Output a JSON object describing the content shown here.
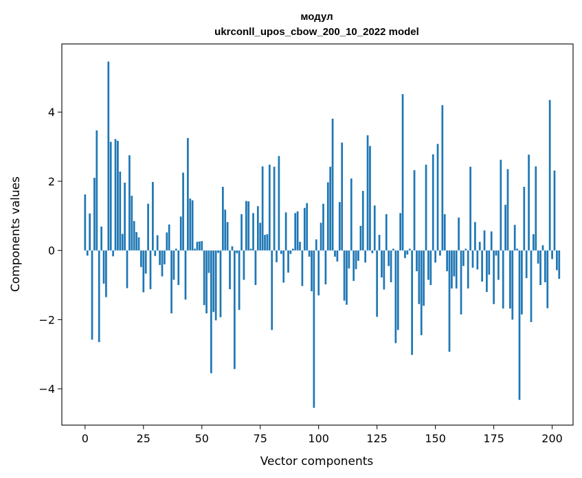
{
  "chart_data": {
    "type": "bar",
    "title": "модул",
    "subtitle": "ukrconll_upos_cbow_200_10_2022 model",
    "xlabel": "Vector components",
    "ylabel": "Components values",
    "xlim": [
      -9.95,
      208.95
    ],
    "ylim": [
      -5.05,
      5.97
    ],
    "xticks": [
      0,
      25,
      50,
      75,
      100,
      125,
      150,
      175,
      200
    ],
    "yticks": [
      -4,
      -2,
      0,
      2,
      4
    ],
    "xtick_labels": [
      "0",
      "25",
      "50",
      "75",
      "100",
      "125",
      "150",
      "175",
      "200"
    ],
    "ytick_labels": [
      "−4",
      "−2",
      "0",
      "2",
      "4"
    ],
    "grid": false,
    "bar_color": "#1f77b4",
    "x_start": 0,
    "values": [
      1.62,
      -0.15,
      1.07,
      -2.58,
      2.1,
      3.47,
      -2.65,
      0.69,
      -0.96,
      -1.35,
      5.46,
      3.14,
      -0.17,
      3.22,
      3.17,
      2.28,
      0.48,
      1.96,
      -1.09,
      2.75,
      1.58,
      0.85,
      0.53,
      0.38,
      -0.48,
      -1.21,
      -0.67,
      1.35,
      -1.12,
      1.98,
      -0.16,
      0.44,
      -0.42,
      -0.75,
      -0.4,
      0.52,
      0.75,
      -1.82,
      -0.85,
      0.05,
      -1.0,
      0.98,
      2.25,
      -1.42,
      3.25,
      1.5,
      1.45,
      0.05,
      0.25,
      0.26,
      0.27,
      -1.58,
      -1.82,
      -0.65,
      -3.55,
      -1.78,
      -2.02,
      -0.07,
      -1.93,
      1.84,
      1.18,
      0.82,
      -1.12,
      0.12,
      -3.43,
      -0.08,
      -1.72,
      1.05,
      -0.85,
      1.43,
      1.42,
      0.05,
      1.08,
      -1.0,
      1.28,
      0.8,
      2.43,
      0.45,
      0.47,
      2.48,
      -2.3,
      2.42,
      -0.34,
      2.73,
      -0.1,
      -0.93,
      1.1,
      -0.64,
      -0.1,
      0.05,
      1.08,
      1.13,
      0.25,
      -1.03,
      1.23,
      1.37,
      -0.18,
      -1.18,
      -4.55,
      0.32,
      -1.3,
      0.8,
      1.35,
      -0.98,
      1.97,
      2.42,
      3.81,
      -0.18,
      -0.32,
      1.4,
      3.12,
      -1.45,
      -1.57,
      -0.52,
      2.08,
      -0.88,
      -0.54,
      -0.3,
      0.71,
      1.72,
      -0.35,
      3.33,
      3.02,
      -0.08,
      1.3,
      -1.92,
      0.45,
      -0.78,
      -1.13,
      1.05,
      -0.45,
      -0.92,
      0.05,
      -2.68,
      -2.3,
      1.08,
      4.52,
      -0.22,
      -0.12,
      0.05,
      -3.02,
      2.32,
      -0.6,
      -1.55,
      -2.45,
      -1.6,
      2.48,
      -0.85,
      -1.0,
      2.78,
      -0.35,
      3.08,
      -0.15,
      4.2,
      1.05,
      -0.6,
      -2.93,
      -1.1,
      -0.75,
      -1.1,
      0.95,
      -1.85,
      -0.45,
      0.05,
      -1.1,
      2.42,
      -0.5,
      0.82,
      -0.55,
      0.25,
      -0.9,
      0.58,
      -1.2,
      -0.7,
      0.55,
      -1.55,
      -0.15,
      -0.85,
      2.62,
      -1.68,
      1.32,
      2.35,
      -1.68,
      -2.0,
      0.74,
      0.05,
      -4.32,
      -1.85,
      1.84,
      -0.8,
      2.77,
      -2.07,
      0.47,
      2.43,
      -0.38,
      -1.0,
      0.15,
      -0.92,
      -1.67,
      4.35,
      -0.25,
      2.31,
      -0.57,
      -0.82
    ]
  }
}
